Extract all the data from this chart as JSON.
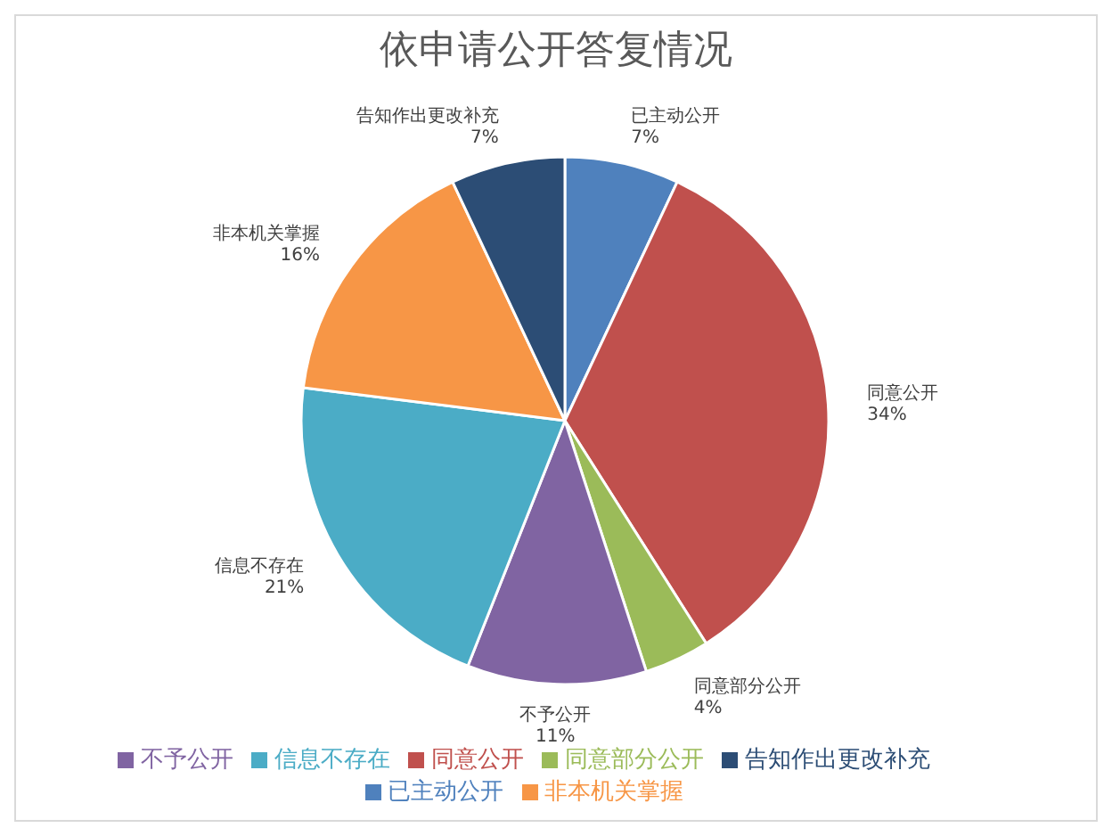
{
  "chart_data": {
    "type": "pie",
    "title": "依申请公开答复情况",
    "categories": [
      "已主动公开",
      "同意公开",
      "同意部分公开",
      "不予公开",
      "信息不存在",
      "非本机关掌握",
      "告知作出更改补充"
    ],
    "values": [
      7,
      34,
      4,
      11,
      21,
      16,
      7
    ],
    "value_labels": [
      "7%",
      "34%",
      "4%",
      "11%",
      "21%",
      "16%",
      "7%"
    ],
    "colors": [
      "#4f81bd",
      "#c0504d",
      "#9bbb59",
      "#8064a2",
      "#4bacc6",
      "#f79646",
      "#2c4d75"
    ],
    "legend": "bottom"
  }
}
